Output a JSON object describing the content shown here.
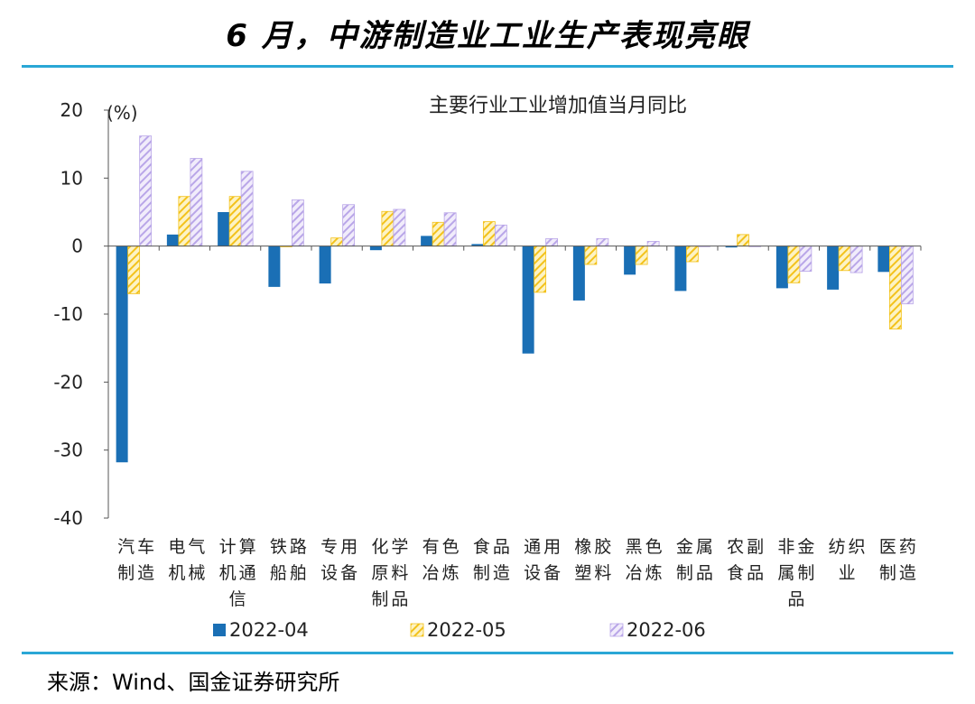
{
  "page": {
    "title": "6 月，中游制造业工业生产表现亮眼",
    "source": "来源：Wind、国金证券研究所"
  },
  "colors": {
    "series_2022_04": "#1a6fb5",
    "series_2022_05": "#f3c21b",
    "series_2022_06": "#b9a6e8",
    "accent_rule": "#2aa7d6"
  },
  "chart_data": {
    "type": "bar",
    "title": "主要行业工业增加值当月同比",
    "ylabel": "(%)",
    "ylim": [
      -40,
      20
    ],
    "yticks": [
      20,
      10,
      0,
      -10,
      -20,
      -30,
      -40
    ],
    "grid": false,
    "legend": "bottom",
    "categories": [
      [
        "汽车",
        "制造"
      ],
      [
        "电气",
        "机械"
      ],
      [
        "计算",
        "机通",
        "信"
      ],
      [
        "铁路",
        "船舶"
      ],
      [
        "专用",
        "设备"
      ],
      [
        "化学",
        "原料",
        "制品"
      ],
      [
        "有色",
        "冶炼"
      ],
      [
        "食品",
        "制造"
      ],
      [
        "通用",
        "设备"
      ],
      [
        "橡胶",
        "塑料"
      ],
      [
        "黑色",
        "冶炼"
      ],
      [
        "金属",
        "制品"
      ],
      [
        "农副",
        "食品"
      ],
      [
        "非金",
        "属制",
        "品"
      ],
      [
        "纺织",
        "业"
      ],
      [
        "医药",
        "制造"
      ]
    ],
    "series": [
      {
        "name": "2022-04",
        "pattern": "solid",
        "values": [
          -31.8,
          1.7,
          5.0,
          -6.0,
          -5.5,
          -0.6,
          1.5,
          0.3,
          -15.8,
          -8.0,
          -4.2,
          -6.6,
          -0.2,
          -6.2,
          -6.4,
          -3.8
        ]
      },
      {
        "name": "2022-05",
        "pattern": "hatch",
        "values": [
          -7.0,
          7.3,
          7.3,
          -0.1,
          1.2,
          5.1,
          3.5,
          3.6,
          -6.8,
          -2.7,
          -2.7,
          -2.3,
          1.7,
          -5.4,
          -3.6,
          -12.2
        ]
      },
      {
        "name": "2022-06",
        "pattern": "hatch",
        "values": [
          16.2,
          12.9,
          11.0,
          6.8,
          6.1,
          5.4,
          4.9,
          3.1,
          1.1,
          1.1,
          0.7,
          0.0,
          0.0,
          -3.7,
          -3.9,
          -8.5
        ]
      }
    ]
  }
}
